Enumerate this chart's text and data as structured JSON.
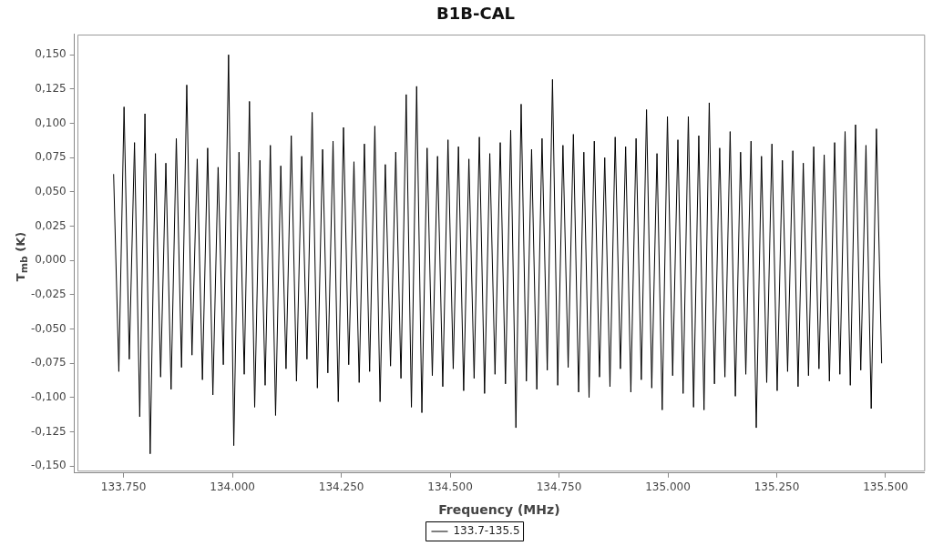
{
  "chart_data": {
    "type": "line",
    "title": "B1B-CAL",
    "xlabel": "Frequency (MHz)",
    "ylabel": "T$_{mb}$ (K)",
    "xlim": [
      133637,
      135588
    ],
    "ylim": [
      -0.155,
      0.165
    ],
    "xticks": [
      {
        "value": 133750,
        "label": "133.750"
      },
      {
        "value": 134000,
        "label": "134.000"
      },
      {
        "value": 134250,
        "label": "134.250"
      },
      {
        "value": 134500,
        "label": "134.500"
      },
      {
        "value": 134750,
        "label": "134.750"
      },
      {
        "value": 135000,
        "label": "135.000"
      },
      {
        "value": 135250,
        "label": "135.250"
      },
      {
        "value": 135500,
        "label": "135.500"
      }
    ],
    "yticks": [
      {
        "value": -0.15,
        "label": "-0,150"
      },
      {
        "value": -0.125,
        "label": "-0,125"
      },
      {
        "value": -0.1,
        "label": "-0,100"
      },
      {
        "value": -0.075,
        "label": "-0,075"
      },
      {
        "value": -0.05,
        "label": "-0,050"
      },
      {
        "value": -0.025,
        "label": "-0,025"
      },
      {
        "value": 0,
        "label": "0,000"
      },
      {
        "value": 0.025,
        "label": "0,025"
      },
      {
        "value": 0.05,
        "label": "0,050"
      },
      {
        "value": 0.075,
        "label": "0,075"
      },
      {
        "value": 0.1,
        "label": "0,100"
      },
      {
        "value": 0.125,
        "label": "0,125"
      },
      {
        "value": 0.15,
        "label": "0,150"
      }
    ],
    "grid": false,
    "legend": "bottom",
    "marker": "none",
    "x": [
      133727,
      133739,
      133751,
      133763,
      133775,
      133787,
      133799,
      133811,
      133823,
      133835,
      133847,
      133859,
      133871,
      133883,
      133895,
      133907,
      133919,
      133931,
      133943,
      133955,
      133967,
      133979,
      133991,
      134003,
      134015,
      134027,
      134039,
      134051,
      134063,
      134075,
      134087,
      134099,
      134111,
      134123,
      134135,
      134147,
      134159,
      134171,
      134183,
      134195,
      134207,
      134219,
      134231,
      134243,
      134255,
      134267,
      134279,
      134291,
      134303,
      134315,
      134327,
      134339,
      134351,
      134363,
      134375,
      134387,
      134399,
      134411,
      134423,
      134435,
      134447,
      134459,
      134471,
      134483,
      134495,
      134507,
      134519,
      134531,
      134543,
      134555,
      134567,
      134579,
      134591,
      134603,
      134615,
      134627,
      134639,
      134651,
      134663,
      134675,
      134687,
      134699,
      134711,
      134723,
      134735,
      134747,
      134759,
      134771,
      134783,
      134795,
      134807,
      134819,
      134831,
      134843,
      134855,
      134867,
      134879,
      134891,
      134903,
      134915,
      134927,
      134939,
      134951,
      134963,
      134975,
      134987,
      134999,
      135011,
      135023,
      135035,
      135047,
      135059,
      135071,
      135083,
      135095,
      135107,
      135119,
      135131,
      135143,
      135155,
      135167,
      135179,
      135191,
      135203,
      135215,
      135227,
      135239,
      135251,
      135263,
      135275,
      135287,
      135299,
      135311,
      135323,
      135335,
      135347,
      135359,
      135371,
      135383,
      135395,
      135407,
      135419,
      135431,
      135443,
      135455,
      135467,
      135479,
      135491
    ],
    "series": [
      {
        "name": "133.7-135.5",
        "color": "#000000",
        "values": [
          0.063,
          -0.081,
          0.112,
          -0.072,
          0.086,
          -0.114,
          0.107,
          -0.141,
          0.078,
          -0.085,
          0.071,
          -0.094,
          0.089,
          -0.078,
          0.128,
          -0.069,
          0.074,
          -0.087,
          0.082,
          -0.098,
          0.068,
          -0.076,
          0.15,
          -0.135,
          0.079,
          -0.083,
          0.116,
          -0.107,
          0.073,
          -0.091,
          0.084,
          -0.113,
          0.069,
          -0.079,
          0.091,
          -0.088,
          0.076,
          -0.072,
          0.108,
          -0.093,
          0.081,
          -0.082,
          0.087,
          -0.103,
          0.097,
          -0.076,
          0.072,
          -0.089,
          0.085,
          -0.081,
          0.098,
          -0.103,
          0.07,
          -0.077,
          0.079,
          -0.086,
          0.121,
          -0.107,
          0.127,
          -0.111,
          0.082,
          -0.084,
          0.076,
          -0.092,
          0.088,
          -0.079,
          0.083,
          -0.095,
          0.074,
          -0.086,
          0.09,
          -0.097,
          0.078,
          -0.083,
          0.086,
          -0.09,
          0.095,
          -0.122,
          0.114,
          -0.088,
          0.081,
          -0.094,
          0.089,
          -0.08,
          0.132,
          -0.091,
          0.084,
          -0.078,
          0.092,
          -0.096,
          0.079,
          -0.1,
          0.087,
          -0.085,
          0.075,
          -0.092,
          0.09,
          -0.079,
          0.083,
          -0.096,
          0.089,
          -0.087,
          0.11,
          -0.093,
          0.078,
          -0.109,
          0.105,
          -0.084,
          0.088,
          -0.097,
          0.105,
          -0.107,
          0.091,
          -0.109,
          0.115,
          -0.09,
          0.082,
          -0.085,
          0.094,
          -0.099,
          0.079,
          -0.083,
          0.087,
          -0.122,
          0.076,
          -0.089,
          0.085,
          -0.095,
          0.073,
          -0.081,
          0.08,
          -0.092,
          0.071,
          -0.084,
          0.083,
          -0.079,
          0.077,
          -0.088,
          0.086,
          -0.083,
          0.094,
          -0.091,
          0.099,
          -0.08,
          0.084,
          -0.108,
          0.096,
          -0.075
        ]
      }
    ]
  }
}
